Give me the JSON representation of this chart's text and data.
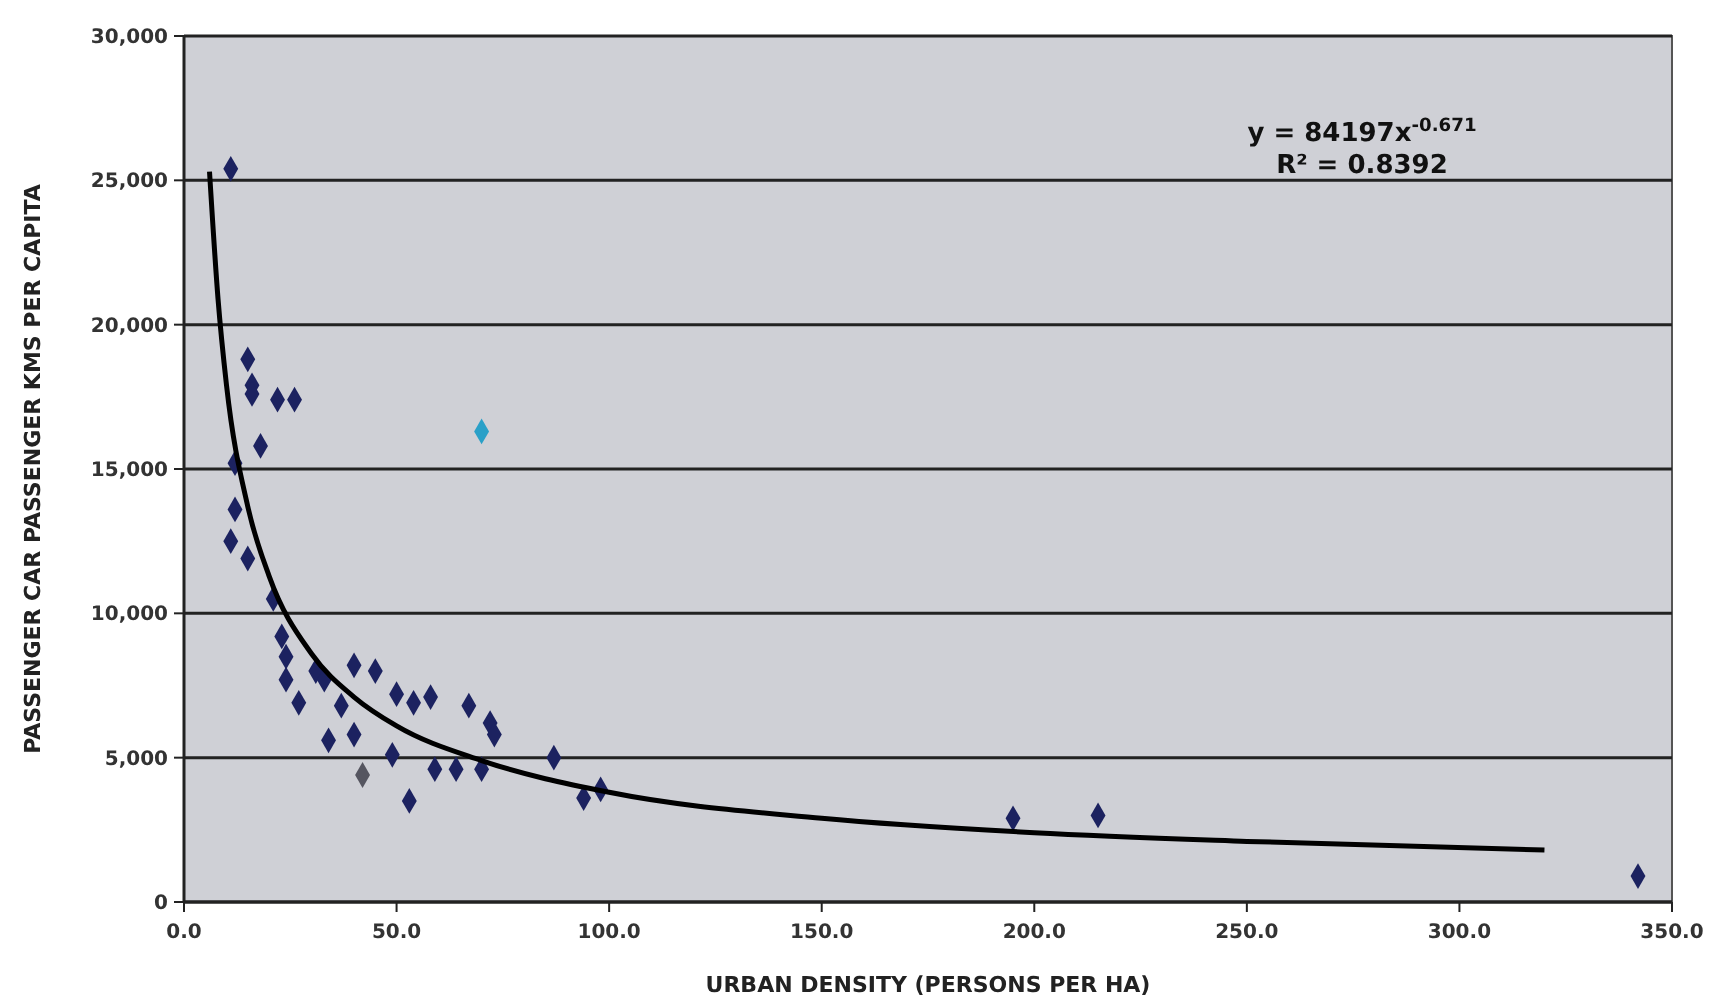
{
  "chart_data": {
    "type": "scatter",
    "xlabel": "URBAN DENSITY (PERSONS PER HA)",
    "ylabel": "PASSENGER CAR PASSENGER KMS PER CAPITA",
    "xlim": [
      0,
      350
    ],
    "ylim": [
      0,
      30000
    ],
    "xticks": [
      {
        "value": 0,
        "label": "0.0"
      },
      {
        "value": 50,
        "label": "50.0"
      },
      {
        "value": 100,
        "label": "100.0"
      },
      {
        "value": 150,
        "label": "150.0"
      },
      {
        "value": 200,
        "label": "200.0"
      },
      {
        "value": 250,
        "label": "250.0"
      },
      {
        "value": 300,
        "label": "300.0"
      },
      {
        "value": 350,
        "label": "350.0"
      }
    ],
    "yticks": [
      0,
      {
        "value": 5000,
        "label": "5,000"
      },
      {
        "value": 10000,
        "label": "10,000"
      },
      {
        "value": 15000,
        "label": "15,000"
      },
      {
        "value": 20000,
        "label": "20,000"
      },
      {
        "value": 25000,
        "label": "25,000"
      },
      {
        "value": 30000,
        "label": "30,000"
      }
    ],
    "grid": "y",
    "marker": "diamond",
    "series": [
      {
        "color": "#1c2260",
        "x": [
          11,
          15,
          16,
          16,
          22,
          26,
          18,
          12,
          12,
          11,
          15,
          21,
          23,
          24,
          24,
          27,
          31,
          33,
          40,
          45,
          37,
          34,
          40,
          50,
          54,
          58,
          49,
          59,
          53,
          67,
          72,
          73,
          70,
          87,
          94,
          64,
          98,
          195,
          215,
          342
        ],
        "values": [
          25400,
          18800,
          17900,
          17600,
          17400,
          17400,
          15800,
          15200,
          13600,
          12500,
          11900,
          10500,
          9200,
          8500,
          7700,
          6900,
          8000,
          7700,
          8200,
          8000,
          6800,
          5600,
          5800,
          7200,
          6900,
          7100,
          5100,
          4600,
          3500,
          6800,
          6200,
          5800,
          4600,
          5000,
          3600,
          4600,
          3900,
          2900,
          3000,
          900
        ]
      },
      {
        "color": "#2aa0c8",
        "x": [
          70
        ],
        "values": [
          16300
        ]
      },
      {
        "color": "#555560",
        "x": [
          42
        ],
        "values": [
          4400
        ]
      },
      {
        "type": "line",
        "color": "#000000",
        "marker": "none",
        "x": [
          6,
          8,
          10,
          15,
          20,
          30,
          40,
          50,
          70,
          100,
          150,
          200,
          250,
          320
        ],
        "values": [
          25300,
          20900,
          17900,
          13700,
          11300,
          8600,
          7100,
          6100,
          4900,
          3800,
          2900,
          2400,
          2100,
          1800
        ]
      }
    ],
    "annotations": [
      "y = 84197x$^{-0.671}$",
      "R² = 0.8392"
    ]
  }
}
